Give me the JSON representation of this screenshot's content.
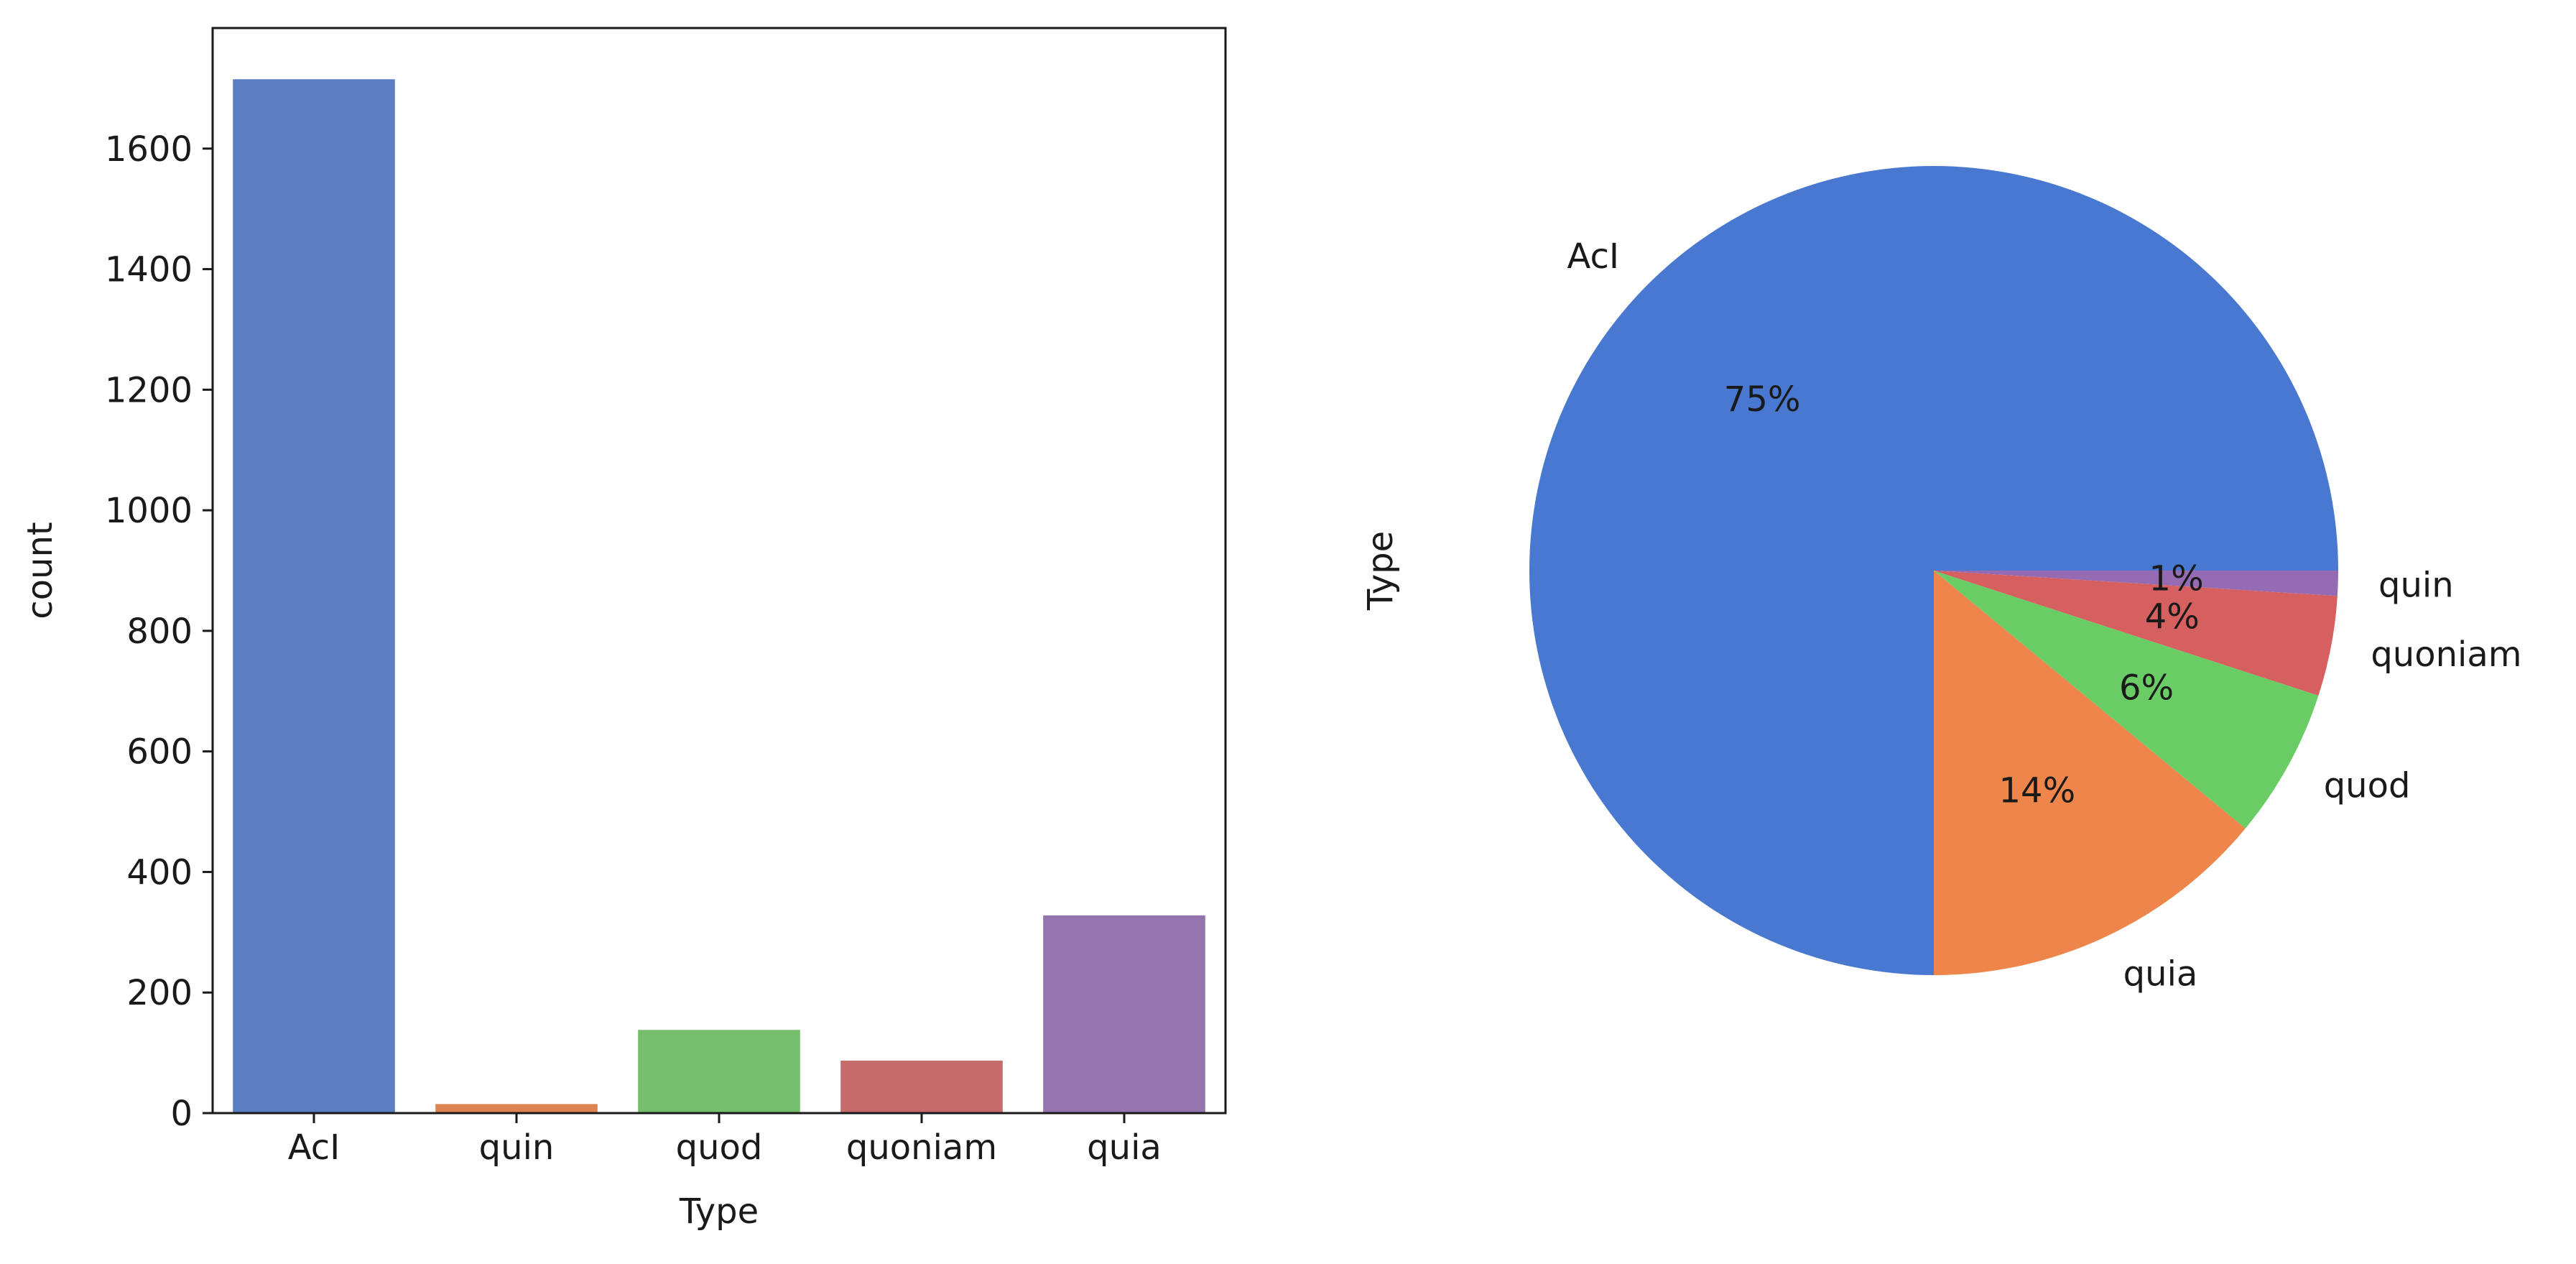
{
  "chart_data": [
    {
      "type": "bar",
      "categories": [
        "AcI",
        "quin",
        "quod",
        "quoniam",
        "quia"
      ],
      "values": [
        1715,
        15,
        138,
        87,
        328
      ],
      "colors": [
        "#5a7ec1",
        "#de8452",
        "#74be6d",
        "#c56b6b",
        "#9575ad"
      ],
      "xlabel": "Type",
      "ylabel": "count",
      "ylim": [
        0,
        1800
      ],
      "yticks": [
        0,
        200,
        400,
        600,
        800,
        1000,
        1200,
        1400,
        1600
      ],
      "grid": false
    },
    {
      "type": "pie",
      "categories": [
        "AcI",
        "quia",
        "quod",
        "quoniam",
        "quin"
      ],
      "values": [
        75,
        14,
        6,
        4,
        1
      ],
      "percent_labels": [
        "75%",
        "14%",
        "6%",
        "4%",
        "1%"
      ],
      "colors": [
        "#4878cf",
        "#ee854a",
        "#6acc65",
        "#d65f5f",
        "#956cb4"
      ],
      "ylabel": "Type",
      "start": "counterclockwise from 3 o'clock"
    }
  ]
}
